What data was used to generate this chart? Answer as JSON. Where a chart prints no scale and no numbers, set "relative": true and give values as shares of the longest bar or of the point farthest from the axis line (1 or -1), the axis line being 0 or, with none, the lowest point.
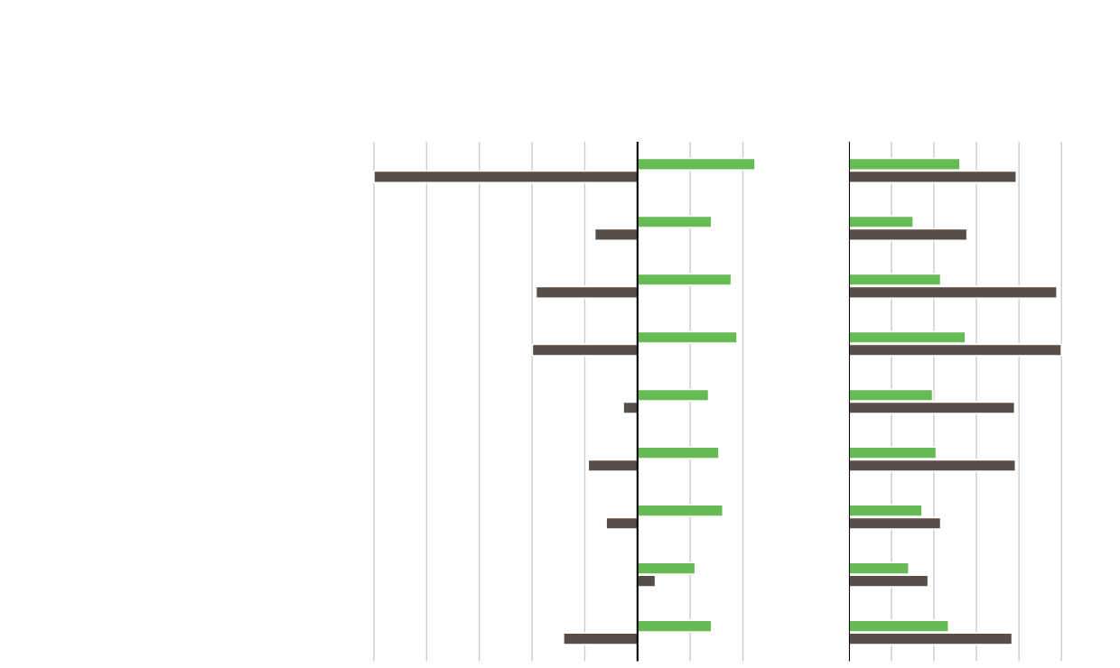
{
  "chart_data": [
    {
      "type": "bar",
      "orientation": "horizontal",
      "relative": true,
      "grid": "x",
      "categories": [
        null,
        null,
        null,
        null,
        null,
        null,
        null,
        null,
        null
      ],
      "series": [
        {
          "color": "#66bb55",
          "values": [
            0.446,
            0.281,
            0.356,
            0.378,
            0.27,
            0.309,
            0.324,
            0.219,
            0.281
          ]
        },
        {
          "color": "#574e47",
          "values": [
            -1,
            -0.162,
            -0.385,
            -0.399,
            -0.054,
            -0.187,
            -0.119,
            0.068,
            -0.281
          ]
        }
      ]
    },
    {
      "type": "bar",
      "orientation": "horizontal",
      "relative": true,
      "grid": "x",
      "categories": [
        null,
        null,
        null,
        null,
        null,
        null,
        null,
        null,
        null
      ],
      "series": [
        {
          "color": "#66bb55",
          "values": [
            0.523,
            0.303,
            0.432,
            0.548,
            0.394,
            0.411,
            0.344,
            0.282,
            0.469
          ]
        },
        {
          "color": "#574e47",
          "values": [
            0.788,
            0.556,
            0.979,
            1,
            0.78,
            0.784,
            0.432,
            0.373,
            0.768
          ]
        }
      ]
    }
  ]
}
